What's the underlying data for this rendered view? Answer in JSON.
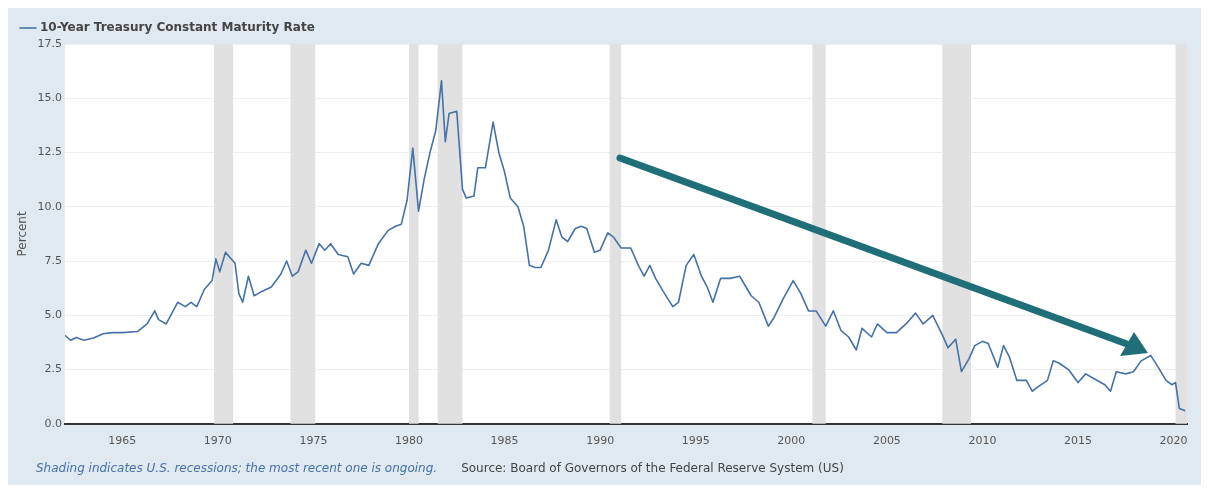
{
  "chart_data": {
    "type": "line",
    "ylabel": "Percent",
    "legend": "top left",
    "grid": "y",
    "marker": "none",
    "line_style": "solid",
    "xlim": [
      1962,
      2020.7
    ],
    "xticks": [
      1965,
      1970,
      1975,
      1980,
      1985,
      1990,
      1995,
      2000,
      2005,
      2010,
      2015,
      2020
    ],
    "ylim": [
      0,
      17.5
    ],
    "yticks": [
      {
        "value": 0,
        "label": "0.0"
      },
      2.5,
      {
        "value": 5,
        "label": "5.0"
      },
      7.5,
      {
        "value": 10,
        "label": "10.0"
      },
      12.5,
      {
        "value": 15,
        "label": "15.0"
      },
      17.5
    ],
    "bands": [
      {
        "axis": "x",
        "from": 1969.8,
        "to": 1970.8,
        "color": "#e1e1e1"
      },
      {
        "axis": "x",
        "from": 1973.8,
        "to": 1975.1,
        "color": "#e1e1e1"
      },
      {
        "axis": "x",
        "from": 1980.0,
        "to": 1980.5,
        "color": "#e1e1e1"
      },
      {
        "axis": "x",
        "from": 1981.5,
        "to": 1982.8,
        "color": "#e1e1e1"
      },
      {
        "axis": "x",
        "from": 1990.5,
        "to": 1991.1,
        "color": "#e1e1e1"
      },
      {
        "axis": "x",
        "from": 2001.1,
        "to": 2001.8,
        "color": "#e1e1e1"
      },
      {
        "axis": "x",
        "from": 2007.9,
        "to": 2009.4,
        "color": "#e1e1e1"
      },
      {
        "axis": "x",
        "from": 2020.1,
        "to": 2020.7,
        "color": "#e1e1e1"
      }
    ],
    "annotations": [
      "Shading indicates U.S. recessions; the most recent one is ongoing.",
      "Source: Board of Governors of the Federal Reserve System (US)"
    ],
    "series": [
      {
        "name": "10-Year Treasury Constant Maturity Rate",
        "color": "#4572a7",
        "x": [
          1962.0,
          1962.3,
          1962.6,
          1963.0,
          1963.5,
          1964.0,
          1964.5,
          1965.0,
          1965.8,
          1966.3,
          1966.7,
          1966.9,
          1967.3,
          1967.6,
          1967.9,
          1968.3,
          1968.6,
          1968.9,
          1969.3,
          1969.7,
          1969.9,
          1970.1,
          1970.4,
          1970.9,
          1971.1,
          1971.3,
          1971.6,
          1971.9,
          1972.3,
          1972.8,
          1973.3,
          1973.6,
          1973.9,
          1974.2,
          1974.6,
          1974.9,
          1975.3,
          1975.6,
          1975.9,
          1976.3,
          1976.8,
          1977.1,
          1977.5,
          1977.9,
          1978.4,
          1978.9,
          1979.3,
          1979.6,
          1979.9,
          1980.2,
          1980.5,
          1980.8,
          1981.1,
          1981.4,
          1981.7,
          1981.9,
          1982.1,
          1982.5,
          1982.8,
          1983.0,
          1983.4,
          1983.6,
          1984.0,
          1984.4,
          1984.7,
          1985.0,
          1985.3,
          1985.7,
          1986.0,
          1986.3,
          1986.6,
          1986.9,
          1987.3,
          1987.7,
          1988.0,
          1988.3,
          1988.7,
          1989.0,
          1989.3,
          1989.7,
          1990.0,
          1990.4,
          1990.7,
          1991.1,
          1991.6,
          1992.0,
          1992.3,
          1992.6,
          1992.9,
          1993.3,
          1993.8,
          1994.1,
          1994.5,
          1994.9,
          1995.3,
          1995.6,
          1995.9,
          1996.3,
          1996.8,
          1997.3,
          1997.9,
          1998.3,
          1998.8,
          1999.1,
          1999.6,
          2000.1,
          2000.5,
          2000.9,
          2001.3,
          2001.8,
          2002.2,
          2002.6,
          2003.0,
          2003.4,
          2003.7,
          2004.2,
          2004.5,
          2005.0,
          2005.5,
          2006.0,
          2006.5,
          2006.9,
          2007.4,
          2007.9,
          2008.2,
          2008.6,
          2008.9,
          2009.3,
          2009.6,
          2010.0,
          2010.3,
          2010.8,
          2011.1,
          2011.4,
          2011.8,
          2012.3,
          2012.6,
          2012.9,
          2013.4,
          2013.7,
          2014.0,
          2014.5,
          2015.0,
          2015.4,
          2015.8,
          2016.4,
          2016.7,
          2017.0,
          2017.5,
          2017.9,
          2018.3,
          2018.8,
          2019.2,
          2019.6,
          2019.9,
          2020.1,
          2020.3,
          2020.6
        ],
        "values": [
          4.08,
          3.85,
          3.98,
          3.85,
          3.95,
          4.15,
          4.2,
          4.2,
          4.25,
          4.6,
          5.2,
          4.8,
          4.6,
          5.1,
          5.6,
          5.4,
          5.6,
          5.4,
          6.2,
          6.6,
          7.6,
          7.0,
          7.9,
          7.4,
          6.0,
          5.6,
          6.8,
          5.9,
          6.1,
          6.3,
          6.9,
          7.5,
          6.8,
          7.0,
          8.0,
          7.4,
          8.3,
          8.0,
          8.3,
          7.8,
          7.7,
          6.9,
          7.4,
          7.3,
          8.3,
          8.9,
          9.1,
          9.2,
          10.3,
          12.7,
          9.8,
          11.3,
          12.5,
          13.5,
          15.8,
          13.0,
          14.3,
          14.4,
          10.8,
          10.4,
          10.5,
          11.8,
          11.8,
          13.9,
          12.5,
          11.6,
          10.4,
          10.0,
          9.1,
          7.3,
          7.2,
          7.2,
          8.0,
          9.4,
          8.6,
          8.4,
          9.0,
          9.1,
          9.0,
          7.9,
          8.0,
          8.8,
          8.6,
          8.1,
          8.1,
          7.3,
          6.8,
          7.3,
          6.7,
          6.1,
          5.4,
          5.6,
          7.3,
          7.8,
          6.8,
          6.3,
          5.6,
          6.7,
          6.7,
          6.8,
          5.9,
          5.6,
          4.5,
          4.9,
          5.8,
          6.6,
          6.0,
          5.2,
          5.2,
          4.5,
          5.2,
          4.3,
          4.0,
          3.4,
          4.4,
          4.0,
          4.6,
          4.2,
          4.2,
          4.6,
          5.1,
          4.6,
          5.0,
          4.1,
          3.5,
          3.9,
          2.4,
          3.0,
          3.6,
          3.8,
          3.7,
          2.6,
          3.6,
          3.1,
          2.0,
          2.0,
          1.5,
          1.7,
          2.0,
          2.9,
          2.8,
          2.5,
          1.9,
          2.3,
          2.1,
          1.8,
          1.5,
          2.4,
          2.3,
          2.4,
          2.9,
          3.15,
          2.6,
          2.0,
          1.8,
          1.9,
          0.7,
          0.6
        ]
      }
    ]
  }
}
